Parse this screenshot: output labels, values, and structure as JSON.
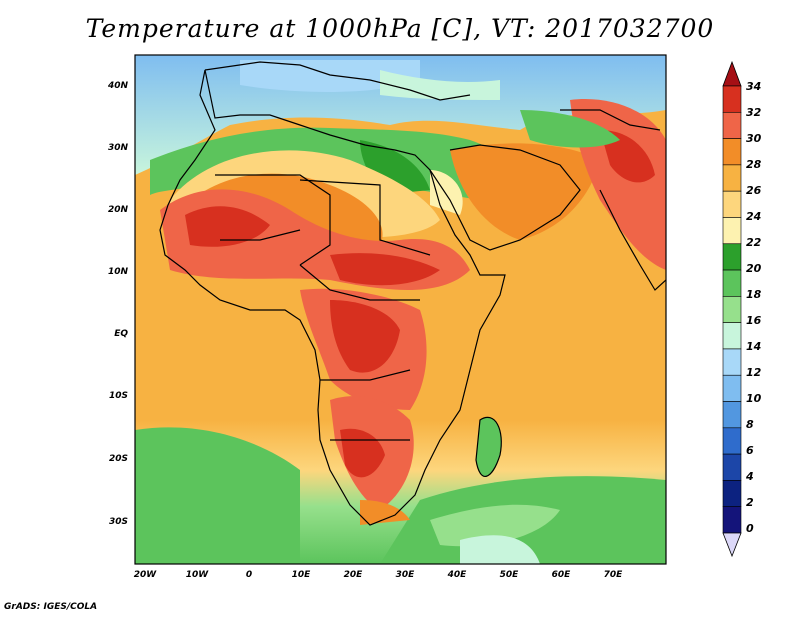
{
  "title": "Temperature at 1000hPa [C], VT: 2017032700",
  "credit": "GrADS: IGES/COLA",
  "map": {
    "lon_labels": [
      "20W",
      "10W",
      "0",
      "10E",
      "20E",
      "30E",
      "40E",
      "50E",
      "60E",
      "70E"
    ],
    "lat_labels": [
      "40N",
      "30N",
      "20N",
      "10N",
      "EQ",
      "10S",
      "20S",
      "30S"
    ]
  },
  "colorbar": {
    "labels": [
      "34",
      "32",
      "30",
      "28",
      "26",
      "24",
      "22",
      "20",
      "18",
      "16",
      "14",
      "12",
      "10",
      "8",
      "6",
      "4",
      "2",
      "0"
    ],
    "colors": [
      "#a50f15",
      "#d7301f",
      "#ef6548",
      "#f28d28",
      "#f7b242",
      "#fdd67d",
      "#fdf2b0",
      "#2ca02c",
      "#5cc45c",
      "#96e08c",
      "#c8f5dc",
      "#a8d8f8",
      "#7fbdf0",
      "#5297e0",
      "#2f6ccc",
      "#1c46a8",
      "#0c2280",
      "#14147a",
      "#dcd8f8"
    ]
  }
}
